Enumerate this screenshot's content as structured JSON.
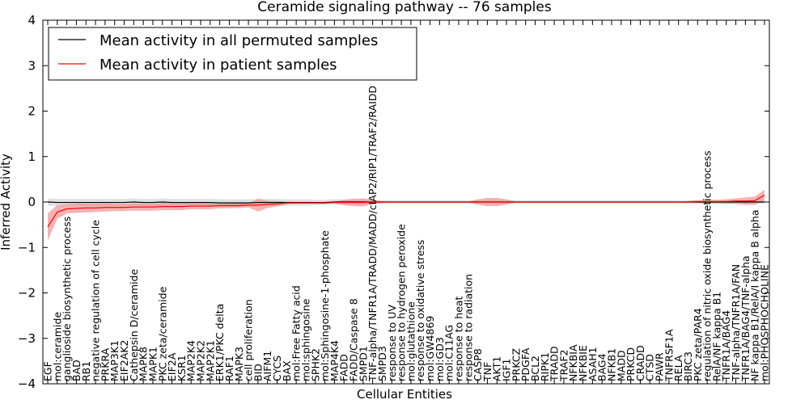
{
  "chart_data": {
    "type": "line",
    "title": "Ceramide signaling pathway -- 76 samples",
    "xlabel": "Cellular Entities",
    "ylabel": "Inferred Activity",
    "ylim": [
      -4,
      4
    ],
    "yticks": [
      -4,
      -3,
      -2,
      -1,
      0,
      1,
      2,
      3,
      4
    ],
    "legend_position": "upper-left",
    "categories": [
      "EGF",
      "mol:ceramide",
      "ganglioside biosynthetic process",
      "BAD",
      "RB1",
      "negative regulation of cell cycle",
      "PRKRA",
      "MAP3K1",
      "EIF2AK2",
      "Cathepsin D/ceramide",
      "MAPK8",
      "MAPK1",
      "PKC zeta/ceramide",
      "EIF2A",
      "KSR1",
      "MAP2K4",
      "MAP2K2",
      "MAP2K1",
      "ERK1/PKC delta",
      "RAF1",
      "MAPK3",
      "cell proliferation",
      "BID",
      "AIFM1",
      "CYCS",
      "BAX",
      "mol:Free Fatty acid",
      "mol:sphingosine",
      "SPHK2",
      "mol:Sphingosine-1-phosphate",
      "MAP4K4",
      "FADD",
      "FADD/Caspase 8",
      "SMPD1",
      "TNF-alpha/TNFR1A/TRADD/MADD/cIAP2/RIP1/TRAF2/RAIDD",
      "SMPD3",
      "response to UV",
      "response to hydrogen peroxide",
      "mol:glutathione",
      "response to oxidative stress",
      "mol:GW4869",
      "mol:GD3",
      "mol:C11AG",
      "response to heat",
      "response to radiation",
      "CASP8",
      "TNF",
      "AKT1",
      "IGF1",
      "PRKCZ",
      "PDGFA",
      "BCL2",
      "RIPK1",
      "TRADD",
      "TRAF2",
      "NFKBIA",
      "NFKBIE",
      "ASAH1",
      "BAG4",
      "NFKB1",
      "MADD",
      "PRKCD",
      "CRADD",
      "CTSD",
      "PAWR",
      "TNFRSF1A",
      "RELA",
      "BIRC3",
      "PKC zeta/PAR4",
      "regulation of nitric oxide biosynthetic process",
      "RelA/NF kappa B1",
      "TNFR1A/BAG4",
      "TNF-alpha/TNFR1A/FAN",
      "TNFR1A/BAG4/TNF-alpha",
      "NF kappa B1/RelA/I kappa B alpha",
      "mol:PHOSPHOCHOLINE"
    ],
    "series": [
      {
        "name": "Mean activity in all permuted samples",
        "color": "#000000",
        "band_color": "#c8c8d0",
        "values": [
          0.0,
          -0.01,
          -0.01,
          -0.01,
          -0.01,
          -0.01,
          -0.01,
          -0.01,
          -0.01,
          0.0,
          -0.01,
          -0.01,
          0.0,
          -0.01,
          -0.01,
          -0.01,
          -0.01,
          -0.01,
          -0.02,
          -0.02,
          -0.02,
          -0.02,
          -0.01,
          -0.01,
          -0.01,
          -0.01,
          -0.01,
          -0.01,
          -0.01,
          -0.01,
          0.0,
          0.0,
          0.0,
          0.0,
          0.0,
          0.0,
          0.0,
          0.0,
          0.0,
          0.0,
          0.0,
          0.0,
          0.0,
          0.0,
          0.0,
          0.0,
          0.0,
          0.0,
          0.0,
          0.0,
          0.0,
          0.0,
          0.0,
          0.0,
          0.0,
          0.0,
          0.0,
          0.0,
          0.0,
          0.0,
          0.0,
          0.0,
          0.0,
          0.0,
          0.0,
          0.0,
          0.0,
          0.0,
          0.0,
          0.0,
          0.0,
          0.0,
          0.0,
          0.0,
          0.0,
          0.0
        ],
        "spread": [
          0.08,
          0.08,
          0.08,
          0.08,
          0.08,
          0.08,
          0.08,
          0.08,
          0.08,
          0.08,
          0.08,
          0.08,
          0.08,
          0.08,
          0.08,
          0.08,
          0.08,
          0.08,
          0.08,
          0.08,
          0.08,
          0.08,
          0.08,
          0.08,
          0.08,
          0.07,
          0.07,
          0.07,
          0.06,
          0.06,
          0.06,
          0.06,
          0.06,
          0.05,
          0.04,
          0.04,
          0.04,
          0.04,
          0.04,
          0.04,
          0.04,
          0.04,
          0.04,
          0.04,
          0.04,
          0.04,
          0.04,
          0.04,
          0.04,
          0.04,
          0.04,
          0.04,
          0.04,
          0.04,
          0.04,
          0.04,
          0.04,
          0.04,
          0.04,
          0.04,
          0.04,
          0.04,
          0.04,
          0.04,
          0.04,
          0.04,
          0.04,
          0.04,
          0.04,
          0.04,
          0.04,
          0.04,
          0.04,
          0.04,
          0.04,
          0.04
        ]
      },
      {
        "name": "Mean activity in patient samples",
        "color": "#ff0000",
        "band_color": "#f08080",
        "values": [
          -0.55,
          -0.22,
          -0.15,
          -0.14,
          -0.13,
          -0.13,
          -0.12,
          -0.12,
          -0.12,
          -0.11,
          -0.11,
          -0.11,
          -0.1,
          -0.1,
          -0.1,
          -0.09,
          -0.09,
          -0.09,
          -0.08,
          -0.08,
          -0.08,
          -0.07,
          -0.07,
          -0.05,
          -0.04,
          -0.02,
          -0.02,
          -0.02,
          -0.02,
          -0.02,
          -0.01,
          -0.01,
          -0.01,
          -0.01,
          0.0,
          0.0,
          0.0,
          0.0,
          0.0,
          0.0,
          0.0,
          0.0,
          0.0,
          0.0,
          0.0,
          0.0,
          0.0,
          0.0,
          0.0,
          0.0,
          0.0,
          0.0,
          0.0,
          0.0,
          0.0,
          0.0,
          0.0,
          0.0,
          0.0,
          0.0,
          0.0,
          0.0,
          0.0,
          0.0,
          0.0,
          0.0,
          0.0,
          0.0,
          0.01,
          0.01,
          0.01,
          0.01,
          0.02,
          0.02,
          0.03,
          0.15
        ],
        "spread": [
          0.3,
          0.15,
          0.1,
          0.1,
          0.1,
          0.09,
          0.09,
          0.08,
          0.08,
          0.08,
          0.08,
          0.08,
          0.08,
          0.08,
          0.08,
          0.07,
          0.07,
          0.07,
          0.06,
          0.06,
          0.05,
          0.05,
          0.14,
          0.08,
          0.06,
          0.03,
          0.02,
          0.02,
          0.02,
          0.02,
          0.02,
          0.06,
          0.08,
          0.09,
          0.05,
          0.02,
          0.01,
          0.01,
          0.01,
          0.01,
          0.01,
          0.01,
          0.01,
          0.01,
          0.01,
          0.06,
          0.09,
          0.09,
          0.06,
          0.01,
          0.01,
          0.01,
          0.01,
          0.01,
          0.01,
          0.01,
          0.01,
          0.01,
          0.01,
          0.01,
          0.01,
          0.01,
          0.01,
          0.01,
          0.01,
          0.01,
          0.01,
          0.02,
          0.03,
          0.04,
          0.04,
          0.05,
          0.06,
          0.08,
          0.09,
          0.12
        ]
      }
    ]
  }
}
